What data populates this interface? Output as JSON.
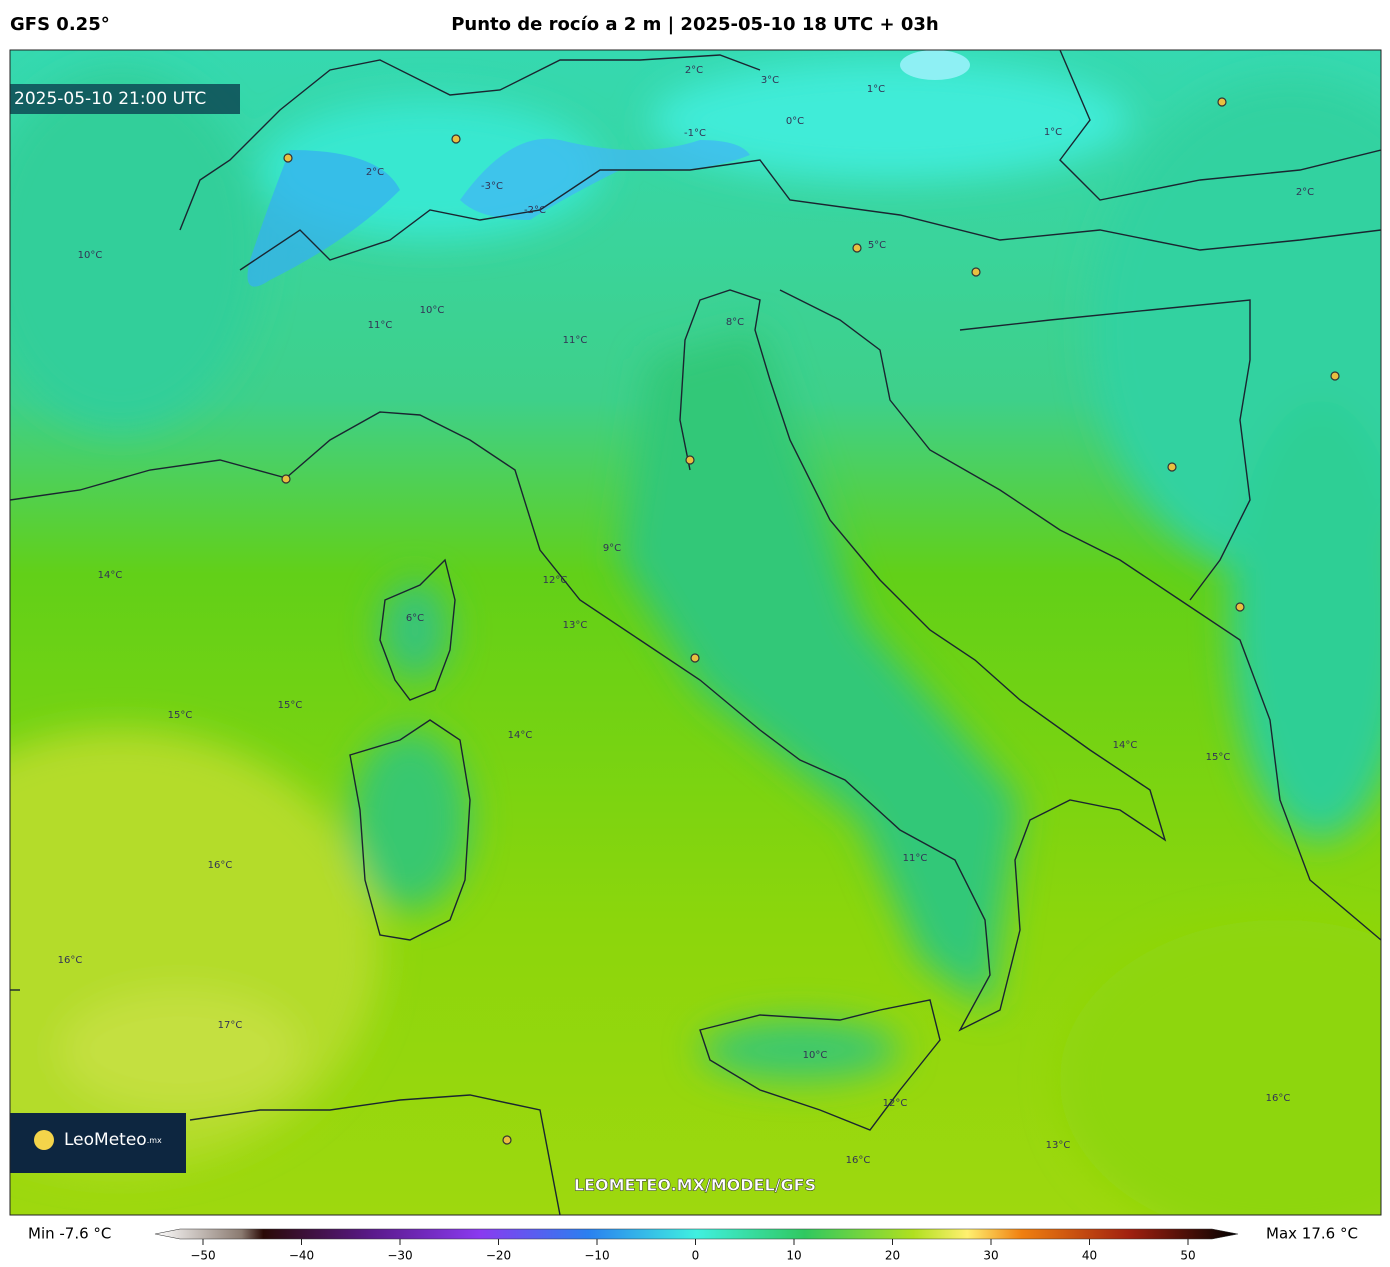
{
  "header": {
    "model": "GFS 0.25°",
    "title": "Punto de rocío a 2 m | 2025-05-10 18 UTC + 03h"
  },
  "map": {
    "valid_time": "2025-05-10 21:00 UTC",
    "logo": "LeoMeteo",
    "logo_suffix": ".mx",
    "watermark": "LEOMETEO.MX/MODEL/GFS",
    "contour_labels": [
      "17°C",
      "16°C",
      "16°C",
      "15°C",
      "15°C",
      "14°C",
      "14°C",
      "13°C",
      "12°C",
      "11°C",
      "11°C",
      "10°C",
      "10°C",
      "9°C",
      "8°C",
      "6°C",
      "11°C",
      "10°C",
      "12°C",
      "16°C",
      "16°C",
      "13°C",
      "14°C",
      "15°C",
      "5°C",
      "3°C",
      "2°C",
      "1°C",
      "2°C",
      "-3°C",
      "-2°C",
      "2°C",
      "1°C",
      "0°C",
      "-1°C"
    ]
  },
  "colorbar": {
    "min_label": "Min -7.6 °C",
    "max_label": "Max 17.6 °C",
    "range": [
      -50,
      50
    ],
    "ticks": [
      {
        "value": -50,
        "label": "−50"
      },
      {
        "value": -40,
        "label": "−40"
      },
      {
        "value": -30,
        "label": "−30"
      },
      {
        "value": -20,
        "label": "−20"
      },
      {
        "value": -10,
        "label": "−10"
      },
      0,
      10,
      20,
      30,
      40,
      50
    ]
  }
}
